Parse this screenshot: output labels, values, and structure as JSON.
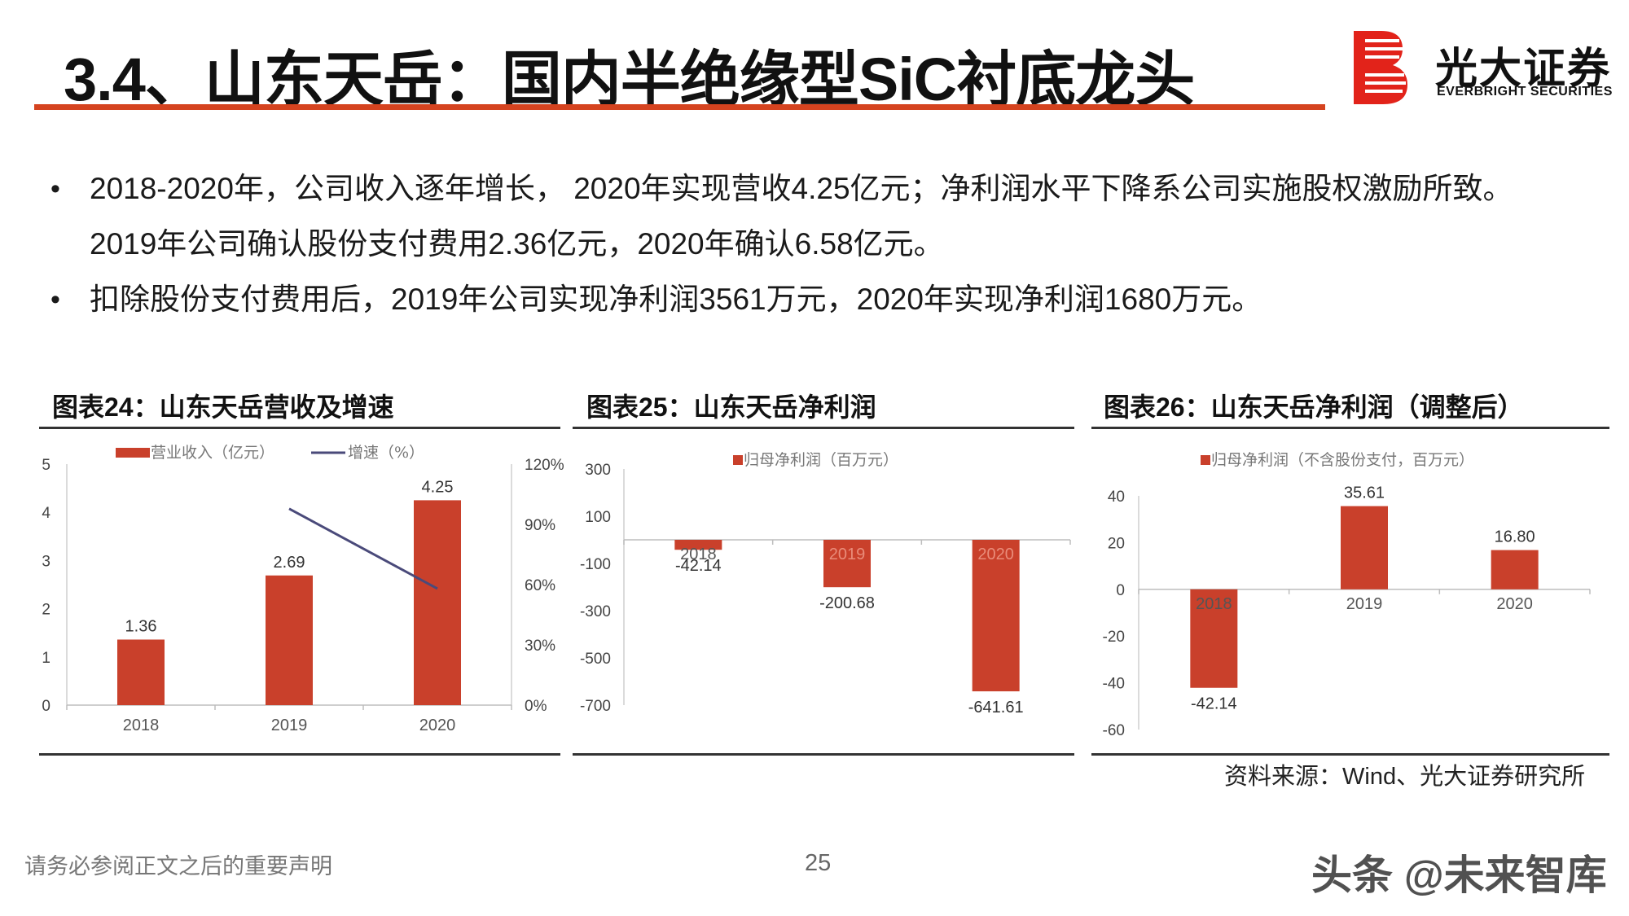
{
  "header": {
    "title": "3.4、山东天岳：国内半绝缘型SiC衬底龙头",
    "logo_cn": "光大证券",
    "logo_en": "EVERBRIGHT SECURITIES"
  },
  "bullets": [
    {
      "lines": [
        "2018-2020年，公司收入逐年增长， 2020年实现营收4.25亿元；净利润水平下降系公司实施股权激励所致。",
        "2019年公司确认股份支付费用2.36亿元，2020年确认6.58亿元。"
      ]
    },
    {
      "lines": [
        "扣除股份支付费用后，2019年公司实现净利润3561万元，2020年实现净利润1680万元。"
      ]
    }
  ],
  "bullet_symbol": "•",
  "panels": {
    "p1_title": "图表24：山东天岳营收及增速",
    "p2_title": "图表25：山东天岳净利润",
    "p3_title": "图表26：山东天岳净利润（调整后）"
  },
  "colors": {
    "accent": "#d5431f",
    "bar": "#c9402b",
    "line": "#4a4a7a"
  },
  "chart_data": [
    {
      "type": "bar",
      "categories": [
        "2018",
        "2019",
        "2020"
      ],
      "series": [
        {
          "name": "营业收入（亿元）",
          "values": [
            1.36,
            2.69,
            4.25
          ],
          "labels": [
            "1.36",
            "2.69",
            "4.25"
          ]
        },
        {
          "name": "增速（%）",
          "type": "line",
          "axis": "right",
          "values": [
            null,
            97.8,
            58.0
          ]
        }
      ],
      "y_ticks": [
        "0",
        "1",
        "2",
        "3",
        "4",
        "5"
      ],
      "ylim": [
        0,
        5
      ],
      "y2_ticks": [
        "0%",
        "30%",
        "60%",
        "90%",
        "120%"
      ],
      "y2lim": [
        0,
        120
      ],
      "legend": "top"
    },
    {
      "type": "bar",
      "categories": [
        "2018",
        "2019",
        "2020"
      ],
      "series": [
        {
          "name": "归母净利润（百万元）",
          "values": [
            -42.14,
            -200.68,
            -641.61
          ],
          "labels": [
            "-42.14",
            "-200.68",
            "-641.61"
          ]
        }
      ],
      "y_ticks": [
        "300",
        "100",
        "-100",
        "-300",
        "-500",
        "-700"
      ],
      "ylim": [
        -700,
        300
      ],
      "legend": "top"
    },
    {
      "type": "bar",
      "categories": [
        "2018",
        "2019",
        "2020"
      ],
      "series": [
        {
          "name": "归母净利润（不含股份支付，百万元）",
          "values": [
            -42.14,
            35.61,
            16.8
          ],
          "labels": [
            "-42.14",
            "35.61",
            "16.80"
          ]
        }
      ],
      "y_ticks": [
        "40",
        "20",
        "0",
        "-20",
        "-40",
        "-60"
      ],
      "ylim": [
        -60,
        40
      ],
      "legend": "top"
    }
  ],
  "footer": {
    "source": "资料来源：Wind、光大证券研究所",
    "disclaimer": "请务必参阅正文之后的重要声明",
    "page": "25",
    "watermark": "头条 @未来智库"
  }
}
